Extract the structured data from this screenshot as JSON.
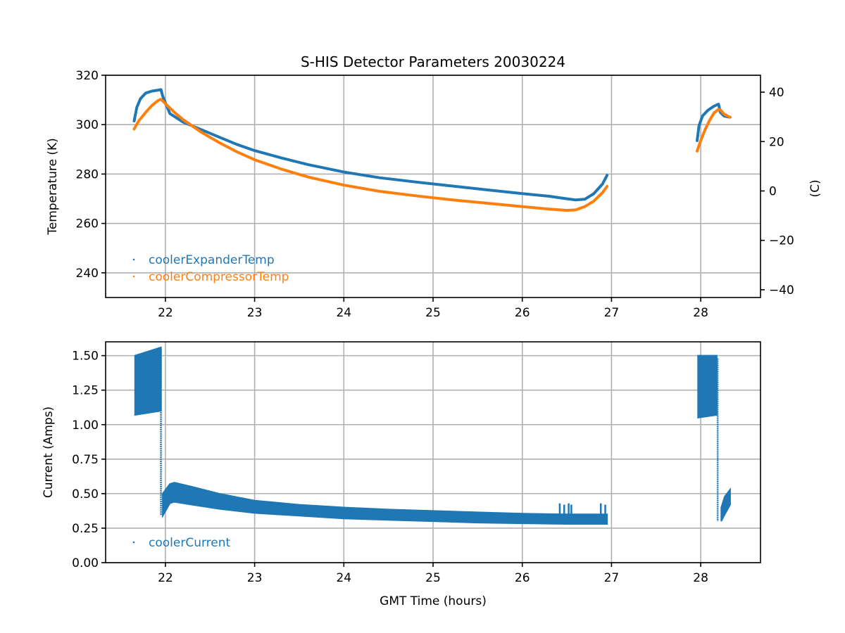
{
  "chart_data": [
    {
      "type": "line",
      "title": "S-HIS Detector Parameters 20030224",
      "xlabel": "",
      "ylabel": "Temperature (K)",
      "ylabel_right": "(C)",
      "xlim": [
        21.33,
        28.67
      ],
      "ylim": [
        230,
        320
      ],
      "ylim_right_celsius": [
        -43.15,
        46.85
      ],
      "xticks": [
        "22",
        "23",
        "24",
        "25",
        "26",
        "27",
        "28"
      ],
      "xtick_values": [
        22,
        23,
        24,
        25,
        26,
        27,
        28
      ],
      "yticks": [
        "240",
        "260",
        "280",
        "300",
        "320"
      ],
      "ytick_values": [
        240,
        260,
        280,
        300,
        320
      ],
      "yticks_right": [
        "−40",
        "−20",
        "0",
        "20",
        "40"
      ],
      "ytick_right_values": [
        -40,
        -20,
        0,
        20,
        40
      ],
      "grid": true,
      "legend_position": "lower-left",
      "series": [
        {
          "name": "coolerExpanderTemp",
          "color": "#1f77b4",
          "segments": [
            {
              "x": [
                21.65,
                21.68,
                21.72,
                21.78,
                21.85,
                21.92,
                21.95,
                21.97,
                22.05,
                22.2,
                22.4,
                22.6,
                22.8,
                23.0,
                23.3,
                23.6,
                24.0,
                24.4,
                24.8,
                25.2,
                25.6,
                26.0,
                26.3,
                26.5,
                26.6,
                26.7,
                26.8,
                26.9,
                26.95
              ],
              "y": [
                301.5,
                307,
                310.5,
                312.8,
                313.6,
                314.0,
                314.2,
                311.5,
                304.5,
                301.0,
                298.0,
                295.0,
                292.0,
                289.5,
                286.5,
                283.8,
                280.8,
                278.5,
                276.8,
                275.2,
                273.6,
                272.1,
                271.0,
                270.0,
                269.5,
                269.8,
                272.0,
                276.0,
                279.5
              ]
            },
            {
              "x": [
                27.96,
                27.98,
                28.02,
                28.08,
                28.14,
                28.18,
                28.2,
                28.22,
                28.26,
                28.3,
                28.33
              ],
              "y": [
                293.5,
                299.5,
                303.5,
                305.8,
                307.3,
                308.0,
                308.3,
                305.0,
                303.5,
                303.2,
                303.0
              ]
            }
          ]
        },
        {
          "name": "coolerCompressorTemp",
          "color": "#ff7f0e",
          "segments": [
            {
              "x": [
                21.65,
                21.7,
                21.78,
                21.85,
                21.92,
                21.95,
                22.0,
                22.1,
                22.2,
                22.4,
                22.6,
                22.8,
                23.0,
                23.3,
                23.6,
                24.0,
                24.4,
                24.8,
                25.2,
                25.6,
                26.0,
                26.3,
                26.5,
                26.6,
                26.7,
                26.8,
                26.9,
                26.95
              ],
              "y": [
                298.2,
                301.5,
                305.0,
                307.8,
                309.8,
                310.3,
                308.5,
                305.0,
                302.0,
                297.0,
                292.8,
                289.0,
                285.8,
                282.0,
                278.8,
                275.5,
                273.0,
                271.2,
                269.6,
                268.2,
                266.8,
                265.8,
                265.3,
                265.5,
                266.8,
                269.0,
                272.5,
                275.0
              ]
            },
            {
              "x": [
                27.96,
                28.0,
                28.05,
                28.1,
                28.15,
                28.2,
                28.22,
                28.26,
                28.3,
                28.33
              ],
              "y": [
                289.3,
                293.5,
                298.0,
                301.8,
                304.8,
                306.2,
                306.0,
                304.3,
                303.5,
                303.0
              ]
            }
          ]
        }
      ]
    },
    {
      "type": "scatter",
      "title": "",
      "xlabel": "GMT Time (hours)",
      "ylabel": "Current (Amps)",
      "xlim": [
        21.33,
        28.67
      ],
      "ylim": [
        0.0,
        1.6
      ],
      "xticks": [
        "22",
        "23",
        "24",
        "25",
        "26",
        "27",
        "28"
      ],
      "xtick_values": [
        22,
        23,
        24,
        25,
        26,
        27,
        28
      ],
      "yticks": [
        "0.00",
        "0.25",
        "0.50",
        "0.75",
        "1.00",
        "1.25",
        "1.50"
      ],
      "ytick_values": [
        0.0,
        0.25,
        0.5,
        0.75,
        1.0,
        1.25,
        1.5
      ],
      "grid": true,
      "legend_position": "lower-left",
      "series": [
        {
          "name": "coolerCurrent",
          "color": "#1f77b4",
          "bands": [
            {
              "x": [
                21.66,
                21.95
              ],
              "upper": [
                1.5,
                1.56
              ],
              "lower": [
                1.07,
                1.1
              ]
            },
            {
              "x": [
                21.97,
                22.05,
                22.1,
                22.3,
                22.6,
                23.0,
                23.5,
                24.0,
                24.5,
                25.0,
                25.5,
                26.0,
                26.5,
                26.95
              ],
              "upper": [
                0.5,
                0.57,
                0.58,
                0.55,
                0.5,
                0.45,
                0.42,
                0.4,
                0.385,
                0.375,
                0.365,
                0.355,
                0.35,
                0.35
              ],
              "lower": [
                0.34,
                0.43,
                0.44,
                0.42,
                0.39,
                0.36,
                0.34,
                0.32,
                0.31,
                0.3,
                0.29,
                0.285,
                0.28,
                0.28
              ]
            },
            {
              "x": [
                27.97,
                28.18
              ],
              "upper": [
                1.5,
                1.5
              ],
              "lower": [
                1.05,
                1.07
              ]
            },
            {
              "x": [
                28.23,
                28.27,
                28.33
              ],
              "upper": [
                0.4,
                0.48,
                0.53
              ],
              "lower": [
                0.3,
                0.35,
                0.42
              ]
            }
          ],
          "transitions": [
            {
              "x": 21.95,
              "from": 1.55,
              "to": 0.34
            },
            {
              "x": 28.19,
              "from": 1.48,
              "to": 0.3
            }
          ],
          "spikes": [
            {
              "x": 26.42,
              "value": 0.43
            },
            {
              "x": 26.47,
              "value": 0.42
            },
            {
              "x": 26.52,
              "value": 0.43
            },
            {
              "x": 26.55,
              "value": 0.42
            },
            {
              "x": 26.88,
              "value": 0.43
            },
            {
              "x": 26.93,
              "value": 0.42
            }
          ]
        }
      ]
    }
  ]
}
